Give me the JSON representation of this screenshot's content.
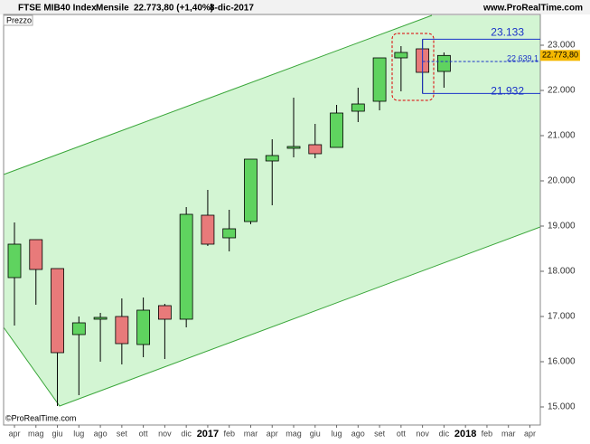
{
  "header": {
    "symbol": "FTSE MIB40 Index",
    "period": "Mensile",
    "last": "22.773,80 (+1,40%)",
    "date": "8-dic-2017",
    "site": "www.ProRealTime.com"
  },
  "chart_data": {
    "type": "candlestick",
    "panel_label": "Prezzo",
    "watermark": "©ProRealTime.com",
    "categories": [
      "apr",
      "mag",
      "giu",
      "lug",
      "ago",
      "set",
      "ott",
      "nov",
      "dic",
      "2017",
      "feb",
      "mar",
      "apr",
      "mag",
      "giu",
      "lug",
      "ago",
      "set",
      "ott",
      "nov",
      "dic",
      "2018",
      "feb",
      "mar",
      "apr"
    ],
    "open": [
      17860,
      18700,
      18060,
      16600,
      16940,
      17000,
      16380,
      17240,
      16940,
      19240,
      18740,
      19100,
      20440,
      20720,
      20800,
      20740,
      21540,
      21760,
      22720,
      22920,
      22420,
      null,
      null,
      null,
      null
    ],
    "high": [
      19080,
      18700,
      18060,
      17000,
      17080,
      17400,
      17420,
      17280,
      19420,
      19800,
      19360,
      20480,
      20920,
      21840,
      21260,
      21680,
      22060,
      22720,
      22980,
      23133,
      22840,
      null,
      null,
      null,
      null
    ],
    "low": [
      16800,
      17260,
      15020,
      15260,
      16000,
      15940,
      16100,
      16060,
      16760,
      18560,
      18440,
      19040,
      19460,
      20520,
      20500,
      20740,
      21300,
      21560,
      21980,
      21932,
      22060,
      null,
      null,
      null,
      null
    ],
    "close": [
      18600,
      18040,
      16200,
      16860,
      16980,
      16400,
      17140,
      16940,
      19260,
      18600,
      18940,
      20480,
      20560,
      20760,
      20600,
      21500,
      21700,
      22720,
      22840,
      22400,
      22773.8,
      null,
      null,
      null,
      null
    ],
    "up_color": "#5fd35f",
    "down_color": "#e87a7a",
    "ylim": [
      14600,
      23400
    ],
    "yticks": [
      {
        "value": 15000,
        "label": "15.000"
      },
      {
        "value": 16000,
        "label": "16.000"
      },
      {
        "value": 17000,
        "label": "17.000"
      },
      {
        "value": 18000,
        "label": "18.000"
      },
      {
        "value": 19000,
        "label": "19.000"
      },
      {
        "value": 20000,
        "label": "20.000"
      },
      {
        "value": 21000,
        "label": "21.000"
      },
      {
        "value": 22000,
        "label": "22.000"
      },
      {
        "value": 23000,
        "label": "23.000"
      }
    ],
    "levels": [
      {
        "value": 23133,
        "label": "23.133"
      },
      {
        "value": 22639.1,
        "label": "22.639,1"
      },
      {
        "value": 21932,
        "label": "21.932"
      }
    ],
    "last_price": {
      "value": 22773.8,
      "label": "22.773,80"
    }
  }
}
